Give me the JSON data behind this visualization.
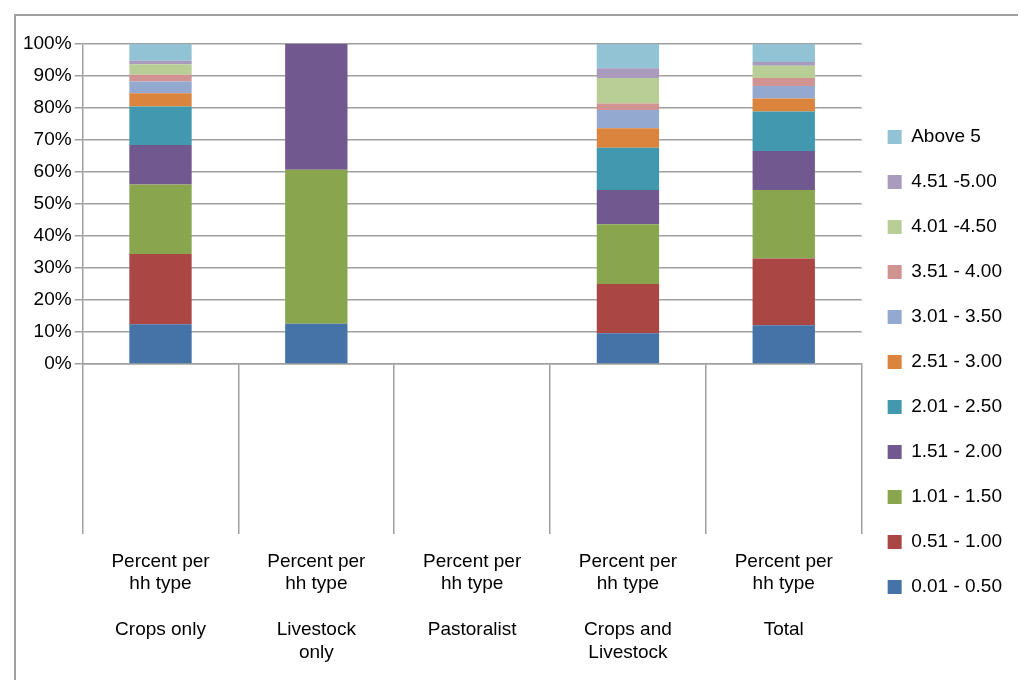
{
  "chart_data": {
    "type": "bar",
    "stacked": true,
    "categories": [
      "Percent per hh type\nCrops only",
      "Percent per hh type\nLivestock only",
      "Percent per hh type\nPastoralist",
      "Percent per hh type\nCrops and Livestock",
      "Percent per hh type\nTotal"
    ],
    "series": [
      {
        "name": "0.01 - 0.50",
        "color": "#4572a7",
        "values": [
          12.4,
          12.6,
          null,
          9.6,
          12.1
        ]
      },
      {
        "name": "0.51 - 1.00",
        "color": "#aa4643",
        "values": [
          22.0,
          null,
          null,
          15.4,
          20.9
        ]
      },
      {
        "name": "1.01 - 1.50",
        "color": "#89a54e",
        "values": [
          21.7,
          48.1,
          null,
          18.7,
          21.4
        ]
      },
      {
        "name": "1.51 - 2.00",
        "color": "#71588f",
        "values": [
          12.3,
          39.3,
          null,
          10.7,
          12.2
        ]
      },
      {
        "name": "2.01 - 2.50",
        "color": "#4198af",
        "values": [
          12.1,
          null,
          null,
          13.2,
          12.3
        ]
      },
      {
        "name": "2.51 - 3.00",
        "color": "#db843d",
        "values": [
          4.1,
          null,
          null,
          6.1,
          4.1
        ]
      },
      {
        "name": "3.01 - 3.50",
        "color": "#93a9cf",
        "values": [
          3.7,
          null,
          null,
          5.7,
          3.9
        ]
      },
      {
        "name": "3.51 - 4.00",
        "color": "#d19392",
        "values": [
          2.1,
          null,
          null,
          2.0,
          2.5
        ]
      },
      {
        "name": "4.01 -4.50",
        "color": "#b9cd96",
        "values": [
          3.3,
          null,
          null,
          8.0,
          3.8
        ]
      },
      {
        "name": "4.51 -5.00",
        "color": "#a99bbd",
        "values": [
          1.1,
          null,
          null,
          3.0,
          1.2
        ]
      },
      {
        "name": "Above 5",
        "color": "#92c3d4",
        "values": [
          5.2,
          null,
          null,
          7.6,
          5.6
        ]
      }
    ],
    "ylim": [
      0,
      100
    ],
    "yticks": [
      {
        "value": 0,
        "label": "0%"
      },
      {
        "value": 10,
        "label": "10%"
      },
      {
        "value": 20,
        "label": "20%"
      },
      {
        "value": 30,
        "label": "30%"
      },
      {
        "value": 40,
        "label": "40%"
      },
      {
        "value": 50,
        "label": "50%"
      },
      {
        "value": 60,
        "label": "60%"
      },
      {
        "value": 70,
        "label": "70%"
      },
      {
        "value": 80,
        "label": "80%"
      },
      {
        "value": 90,
        "label": "90%"
      },
      {
        "value": 100,
        "label": "100%"
      }
    ],
    "grid": "y",
    "legend": "right"
  }
}
